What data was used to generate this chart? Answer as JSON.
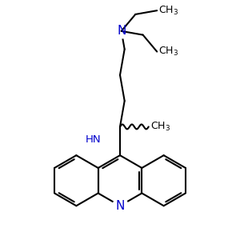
{
  "background_color": "#ffffff",
  "bond_color": "#000000",
  "nitrogen_color": "#0000cd",
  "line_width": 1.5,
  "dbo": 0.06,
  "figsize": [
    3.0,
    3.0
  ],
  "dpi": 100,
  "xlim": [
    -3.2,
    3.2
  ],
  "ylim": [
    -3.5,
    3.5
  ]
}
